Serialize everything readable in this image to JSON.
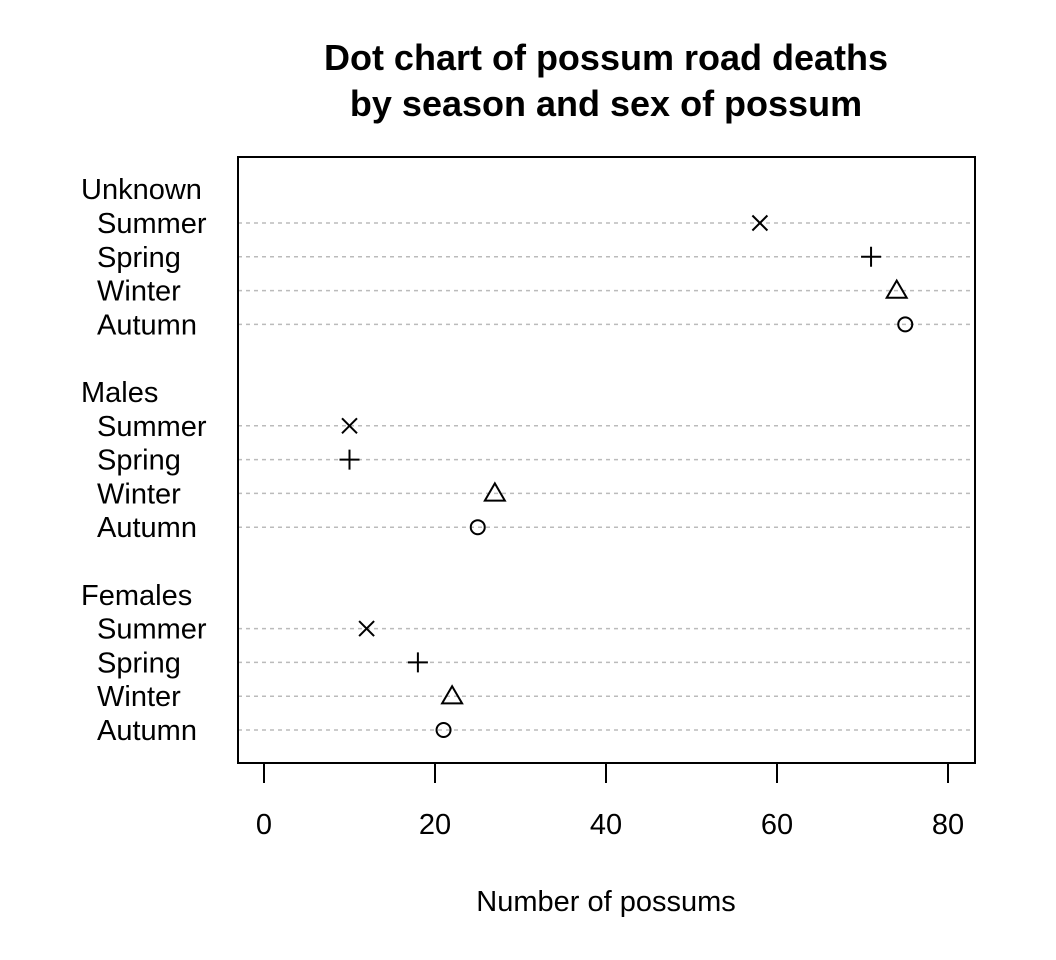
{
  "chart_data": {
    "type": "dot",
    "title": "Dot chart of possum road deaths",
    "subtitle": "by season and sex of possum",
    "xlabel": "Number of possums",
    "ylabel": "",
    "xlim": [
      -4,
      82
    ],
    "xticks": [
      0,
      20,
      40,
      60,
      80
    ],
    "grid": "dashed horizontal lines per row",
    "legend": "none",
    "groups": [
      {
        "name": "Unknown",
        "seasons": [
          "Summer",
          "Spring",
          "Winter",
          "Autumn"
        ],
        "values": [
          58,
          71,
          74,
          75
        ]
      },
      {
        "name": "Males",
        "seasons": [
          "Summer",
          "Spring",
          "Winter",
          "Autumn"
        ],
        "values": [
          10,
          10,
          27,
          25
        ]
      },
      {
        "name": "Females",
        "seasons": [
          "Summer",
          "Spring",
          "Winter",
          "Autumn"
        ],
        "values": [
          12,
          18,
          22,
          21
        ]
      }
    ],
    "markers": {
      "Summer": "cross",
      "Spring": "plus",
      "Winter": "triangle",
      "Autumn": "circle"
    }
  }
}
